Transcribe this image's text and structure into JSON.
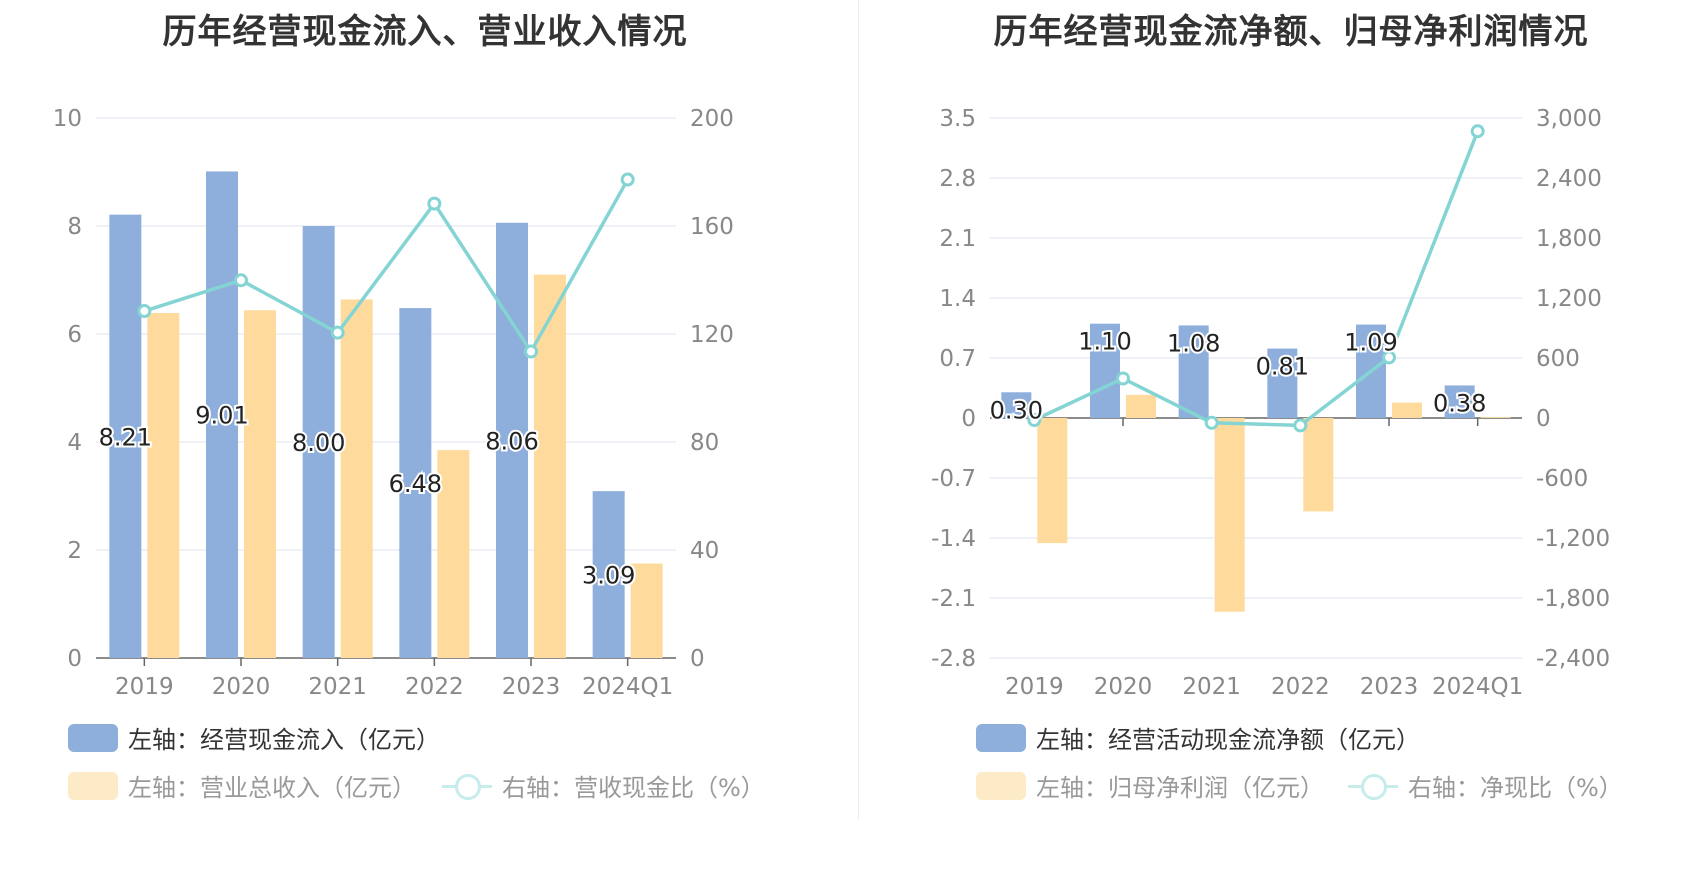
{
  "colors": {
    "bar1": "#8eaedb",
    "bar2": "#fedb9c",
    "line": "#84d4d4",
    "grid": "#dfe3ef",
    "axis_text": "#888888",
    "label": "#222222"
  },
  "chart_data": [
    {
      "type": "bar",
      "title": "历年经营现金流入、营业收入情况",
      "categories": [
        "2019",
        "2020",
        "2021",
        "2022",
        "2023",
        "2024Q1"
      ],
      "y_left": {
        "min": 0,
        "max": 10,
        "ticks": [
          "0",
          "2",
          "4",
          "6",
          "8",
          "10"
        ]
      },
      "y_right": {
        "min": 0,
        "max": 200,
        "ticks": [
          "0",
          "40",
          "80",
          "120",
          "160",
          "200"
        ]
      },
      "series": [
        {
          "name": "左轴：经营现金流入（亿元）",
          "axis": "left",
          "kind": "bar",
          "values": [
            8.21,
            9.01,
            8.0,
            6.48,
            8.06,
            3.09
          ],
          "labels": [
            "8.21",
            "9.01",
            "8.00",
            "6.48",
            "8.06",
            "3.09"
          ]
        },
        {
          "name": "左轴：营业总收入（亿元）",
          "axis": "left",
          "kind": "bar",
          "values": [
            6.39,
            6.44,
            6.64,
            3.85,
            7.1,
            1.75
          ]
        },
        {
          "name": "右轴：营收现金比（%）",
          "axis": "right",
          "kind": "line",
          "values": [
            128.5,
            139.9,
            120.5,
            168.3,
            113.5,
            177.2
          ]
        }
      ]
    },
    {
      "type": "bar",
      "title": "历年经营现金流净额、归母净利润情况",
      "categories": [
        "2019",
        "2020",
        "2021",
        "2022",
        "2023",
        "2024Q1"
      ],
      "y_left": {
        "min": -2.8,
        "max": 3.5,
        "ticks": [
          "-2.8",
          "-2.1",
          "-1.4",
          "-0.7",
          "0",
          "0.7",
          "1.4",
          "2.1",
          "2.8",
          "3.5"
        ]
      },
      "y_right": {
        "min": -2400,
        "max": 3000,
        "ticks": [
          "-2,400",
          "-1,800",
          "-1,200",
          "-600",
          "0",
          "600",
          "1,200",
          "1,800",
          "2,400",
          "3,000"
        ]
      },
      "series": [
        {
          "name": "左轴：经营活动现金流净额（亿元）",
          "axis": "left",
          "kind": "bar",
          "values": [
            0.3,
            1.1,
            1.08,
            0.81,
            1.09,
            0.38
          ],
          "labels": [
            "0.30",
            "1.10",
            "1.08",
            "0.81",
            "1.09",
            "0.38"
          ]
        },
        {
          "name": "左轴：归母净利润（亿元）",
          "axis": "left",
          "kind": "bar",
          "values": [
            -1.46,
            0.27,
            -2.26,
            -1.09,
            0.18,
            0.01
          ]
        },
        {
          "name": "右轴：净现比（%）",
          "axis": "right",
          "kind": "line",
          "values": [
            -20,
            395,
            -48,
            -74,
            606,
            2868
          ]
        }
      ]
    }
  ]
}
